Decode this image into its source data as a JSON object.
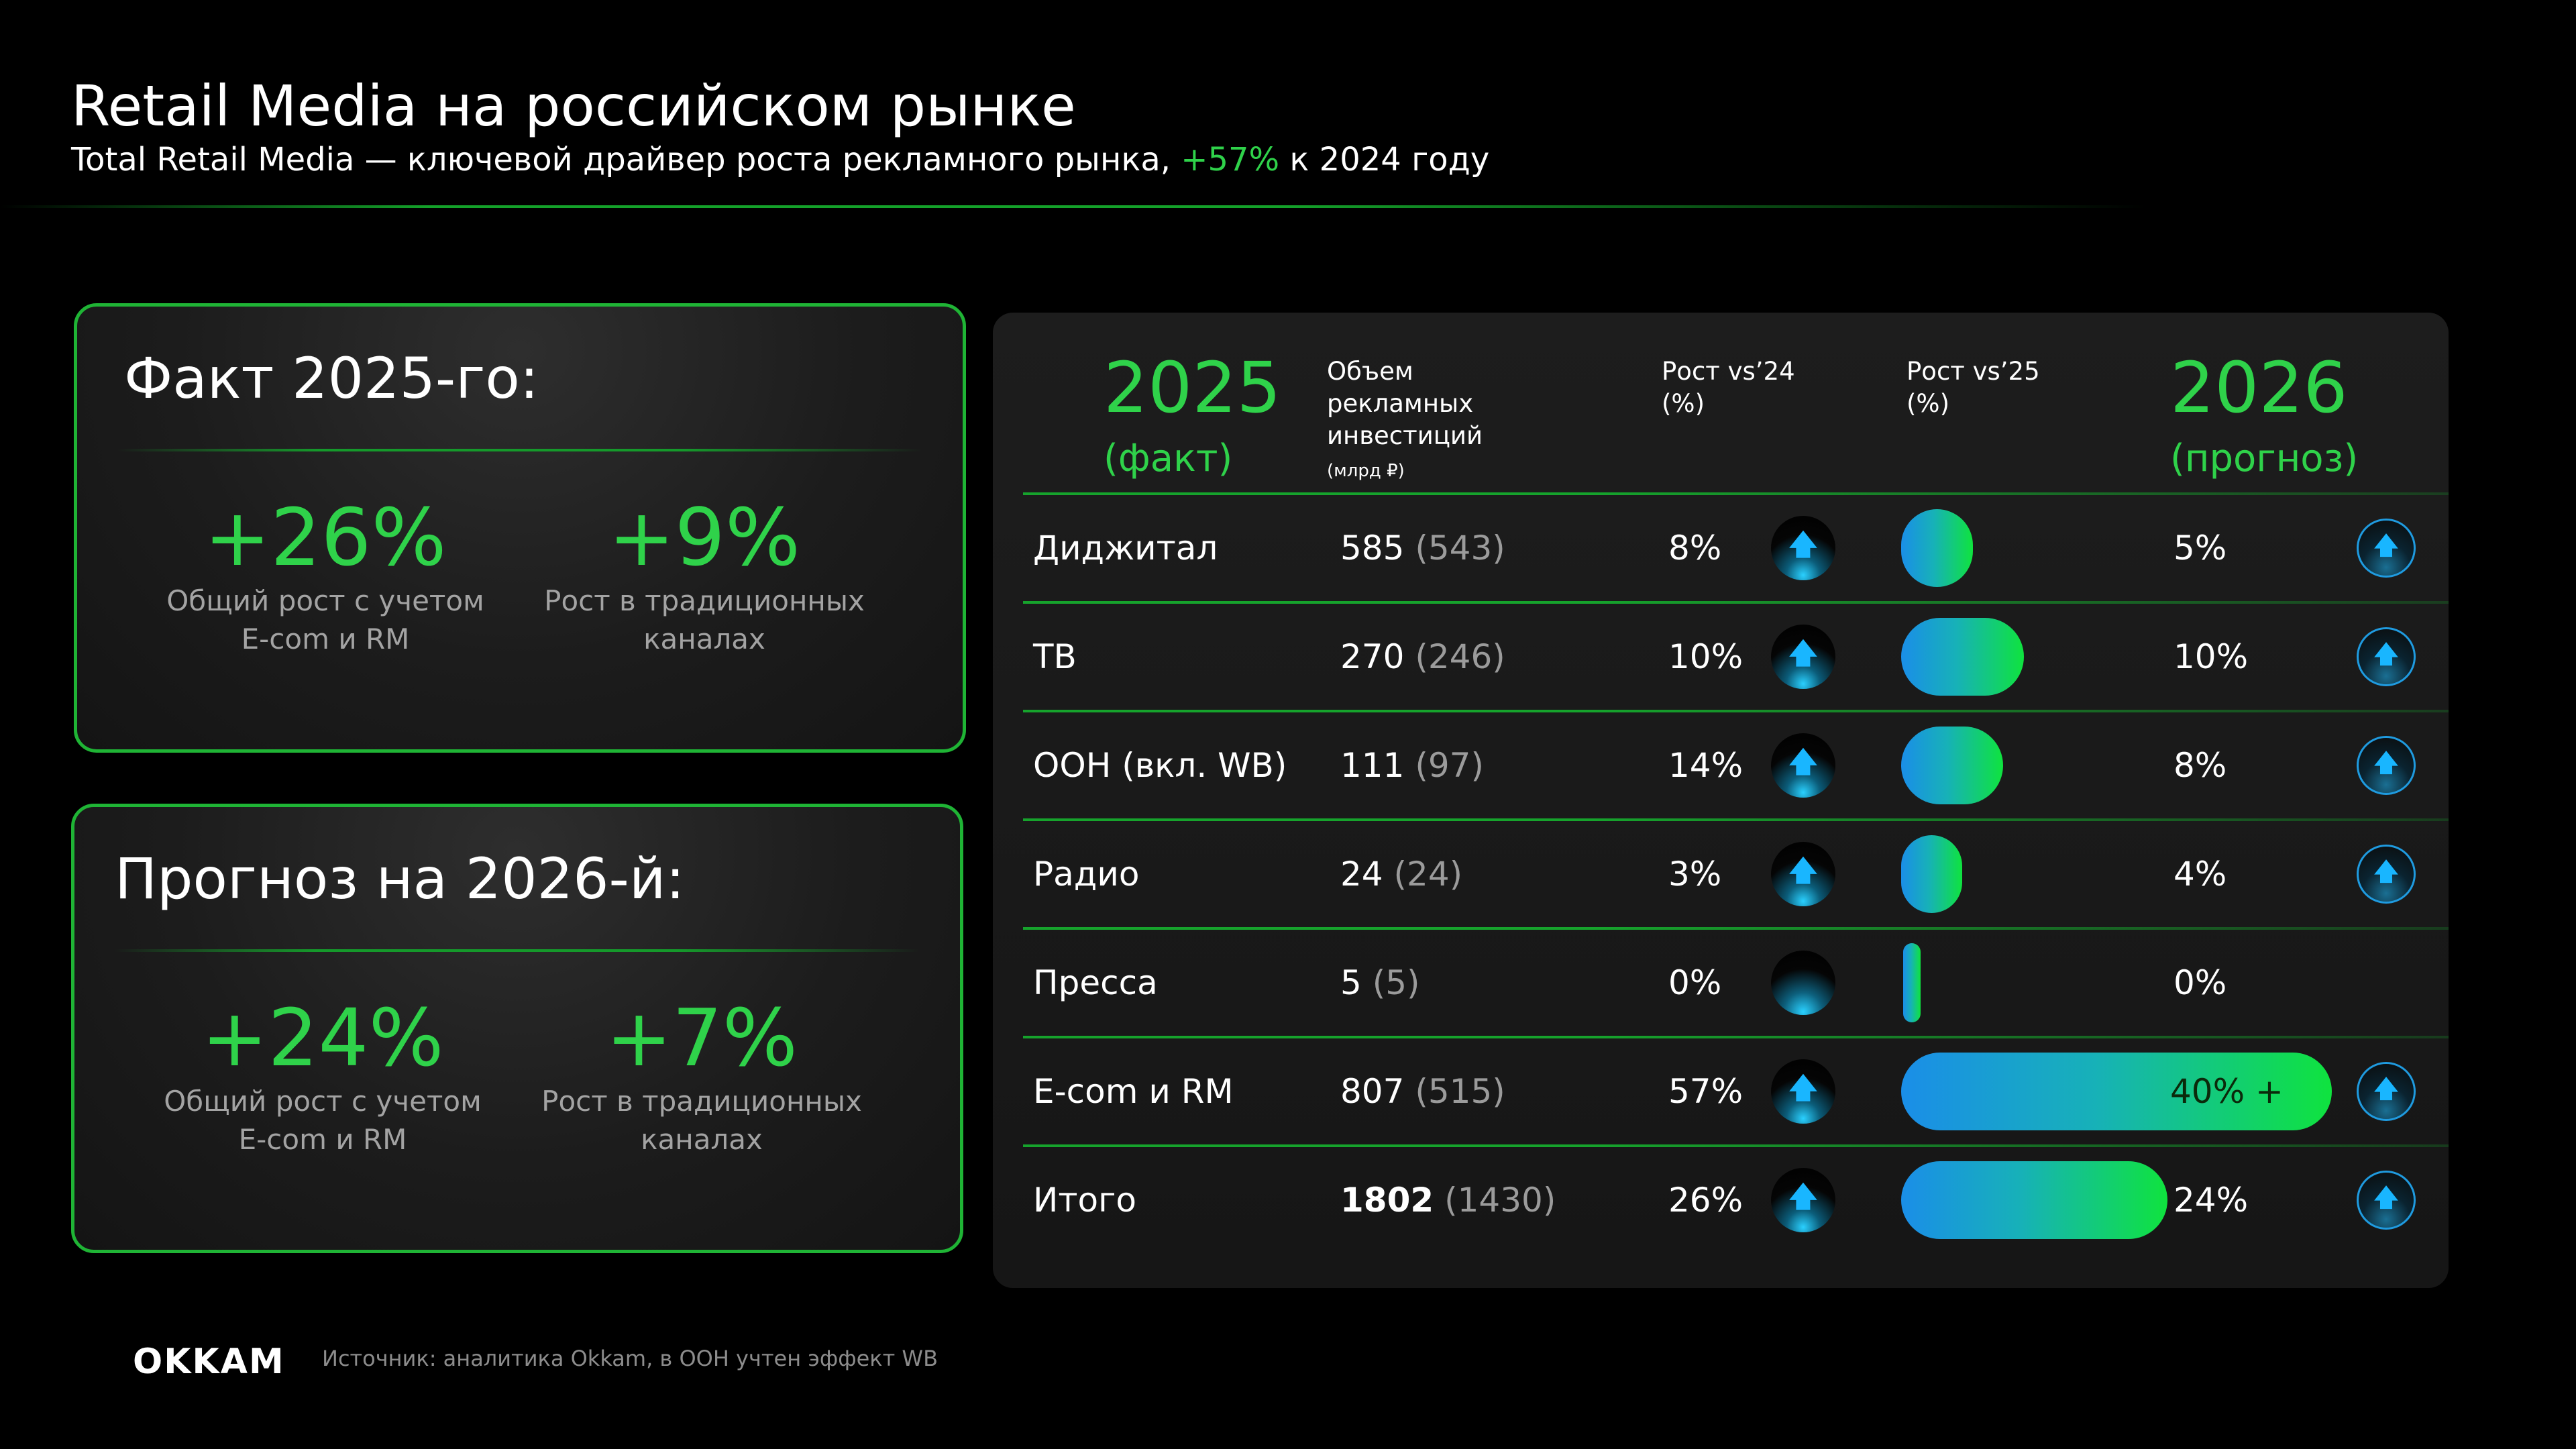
{
  "header": {
    "title": "Retail Media на российском рынке",
    "subtitle_pre": "Total Retail Media — ключевой драйвер роста рекламного рынка, ",
    "subtitle_accent": "+57%",
    "subtitle_post": " к 2024 году"
  },
  "fact_card": {
    "title": "Факт 2025-го:",
    "stats": [
      {
        "value": "+26%",
        "label_line1": "Общий рост с учетом",
        "label_line2": "E-com и RM"
      },
      {
        "value": "+9%",
        "label_line1": "Рост в традиционных",
        "label_line2": "каналах"
      }
    ]
  },
  "forecast_card": {
    "title": "Прогноз на 2026-й:",
    "stats": [
      {
        "value": "+24%",
        "label_line1": "Общий рост с учетом",
        "label_line2": "E-com и RM"
      },
      {
        "value": "+7%",
        "label_line1": "Рост в традиционных",
        "label_line2": "каналах"
      }
    ]
  },
  "table": {
    "year_2025": "2025",
    "year_2025_sub": "(факт)",
    "volume_header_1": "Объем",
    "volume_header_2": "рекламных",
    "volume_header_3": "инвестиций",
    "volume_unit": "(млрд ₽)",
    "growth24_header_1": "Рост vs’24",
    "growth24_header_2": "(%)",
    "growth25_header_1": "Рост vs’25",
    "growth25_header_2": "(%)",
    "year_2026": "2026",
    "year_2026_sub": "(прогноз)",
    "rows": [
      {
        "name": "Диджитал",
        "volume": "585",
        "volume_prev": "(543)",
        "growth24": "8%",
        "growth26": "5%",
        "bar_value": 5,
        "bar_label": "",
        "trend": "up",
        "ring": true
      },
      {
        "name": "ТВ",
        "volume": "270",
        "volume_prev": "(246)",
        "growth24": "10%",
        "growth26": "10%",
        "bar_value": 10,
        "bar_label": "",
        "trend": "up",
        "ring": true
      },
      {
        "name": "ООН (вкл. WB)",
        "volume": "111",
        "volume_prev": "(97)",
        "growth24": "14%",
        "growth26": "8%",
        "bar_value": 8,
        "bar_label": "",
        "trend": "up",
        "ring": true
      },
      {
        "name": "Радио",
        "volume": "24",
        "volume_prev": "(24)",
        "growth24": "3%",
        "growth26": "4%",
        "bar_value": 4,
        "bar_label": "",
        "trend": "up",
        "ring": true
      },
      {
        "name": "Пресса",
        "volume": "5",
        "volume_prev": "(5)",
        "growth24": "0%",
        "growth26": "0%",
        "bar_value": 0,
        "bar_label": "",
        "trend": "flat",
        "ring": false
      },
      {
        "name": "E-com и RM",
        "volume": "807",
        "volume_prev": "(515)",
        "growth24": "57%",
        "growth26": "",
        "bar_value": 40,
        "bar_label": "40% +",
        "trend": "up",
        "ring": true
      },
      {
        "name": "Итого",
        "volume": "1802",
        "volume_prev": "(1430)",
        "growth24": "26%",
        "growth26": "24%",
        "bar_value": 24,
        "bar_label": "",
        "trend": "up",
        "ring": true
      }
    ]
  },
  "footer": {
    "logo": "OKKAM",
    "source": "Источник: аналитика Okkam, в ООН учтен эффект WB"
  },
  "colors": {
    "accent_green": "#2fd24a",
    "border_green": "#1fb435",
    "icon_blue": "#19b6ff"
  },
  "icons": {
    "trend_up": "arrow-up-icon",
    "ring_up": "arrow-up-ring-icon"
  }
}
